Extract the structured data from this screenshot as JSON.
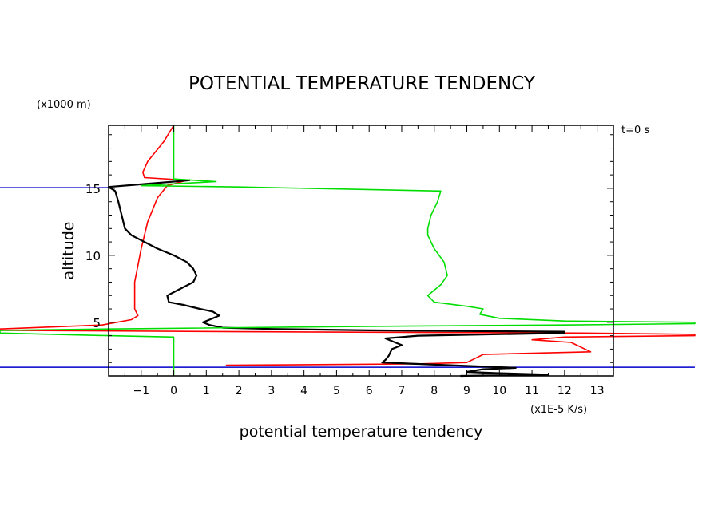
{
  "chart_data": {
    "type": "line",
    "title": "POTENTIAL TEMPERATURE TENDENCY",
    "xlabel": "potential temperature tendency",
    "ylabel": "altitude",
    "x_unit": "(x1E-5 K/s)",
    "y_unit": "(x1000 m)",
    "annotation": "t=0 s",
    "xlim": [
      -2,
      13.5
    ],
    "ylim": [
      1,
      19.7
    ],
    "x_ticks": [
      -1,
      0,
      1,
      2,
      3,
      4,
      5,
      6,
      7,
      8,
      9,
      10,
      11,
      12,
      13
    ],
    "y_ticks": [
      5,
      10,
      15
    ],
    "grid": false,
    "legend": "none",
    "series": [
      {
        "color": "#ff0000",
        "points": [
          [
            0,
            19.7
          ],
          [
            -0.3,
            18.5
          ],
          [
            -0.8,
            17
          ],
          [
            -0.95,
            16.2
          ],
          [
            -0.9,
            15.8
          ],
          [
            0.4,
            15.6
          ],
          [
            -0.2,
            15.2
          ],
          [
            -0.5,
            14.3
          ],
          [
            -0.8,
            12.5
          ],
          [
            -1.0,
            10.5
          ],
          [
            -1.2,
            8
          ],
          [
            -1.2,
            6
          ],
          [
            -1.1,
            5.5
          ],
          [
            -1.3,
            5.2
          ],
          [
            -2.2,
            4.8
          ],
          [
            -6,
            4.5
          ],
          [
            -6,
            4.4
          ],
          [
            2,
            4.3
          ],
          [
            12.5,
            4.2
          ],
          [
            16,
            4.1
          ],
          [
            16,
            4.0
          ],
          [
            12,
            3.9
          ],
          [
            11,
            3.7
          ],
          [
            12.2,
            3.5
          ],
          [
            12.8,
            2.8
          ],
          [
            9.5,
            2.6
          ],
          [
            9,
            2.0
          ],
          [
            7.5,
            1.9
          ],
          [
            1.6,
            1.8
          ]
        ]
      },
      {
        "color": "#000000",
        "points": [
          [
            0.5,
            15.6
          ],
          [
            -1,
            15.3
          ],
          [
            -2,
            15.1
          ],
          [
            -1.8,
            14.8
          ],
          [
            -1.7,
            14
          ],
          [
            -1.6,
            13
          ],
          [
            -1.5,
            12
          ],
          [
            -1.3,
            11.5
          ],
          [
            -0.9,
            11
          ],
          [
            -0.5,
            10.5
          ],
          [
            0,
            10
          ],
          [
            0.4,
            9.5
          ],
          [
            0.6,
            9
          ],
          [
            0.7,
            8.5
          ],
          [
            0.6,
            8
          ],
          [
            0.2,
            7.5
          ],
          [
            -0.2,
            7
          ],
          [
            -0.15,
            6.5
          ],
          [
            0.3,
            6.3
          ],
          [
            0.8,
            6
          ],
          [
            1.2,
            5.8
          ],
          [
            1.4,
            5.5
          ],
          [
            1.1,
            5.2
          ],
          [
            0.9,
            5
          ],
          [
            1.1,
            4.8
          ],
          [
            1.5,
            4.6
          ],
          [
            3,
            4.5
          ],
          [
            6,
            4.4
          ],
          [
            12,
            4.3
          ],
          [
            12,
            4.2
          ],
          [
            7.5,
            4.0
          ],
          [
            6.5,
            3.8
          ],
          [
            6.8,
            3.5
          ],
          [
            7,
            3.3
          ],
          [
            6.7,
            3.0
          ],
          [
            6.6,
            2.5
          ],
          [
            6.5,
            2.2
          ],
          [
            6.4,
            2.0
          ],
          [
            8.5,
            1.8
          ],
          [
            10.5,
            1.6
          ],
          [
            9.5,
            1.5
          ],
          [
            9,
            1.3
          ],
          [
            10,
            1.2
          ],
          [
            11.5,
            1.1
          ],
          [
            8.8,
            1.0
          ]
        ]
      },
      {
        "color": "#00dd00",
        "points": [
          [
            0,
            19.7
          ],
          [
            0,
            17.5
          ],
          [
            0,
            16
          ],
          [
            0,
            15.7
          ],
          [
            1.3,
            15.5
          ],
          [
            -0.3,
            15.3
          ],
          [
            -1,
            15.2
          ],
          [
            2,
            15.1
          ],
          [
            8.2,
            14.8
          ],
          [
            8.1,
            14
          ],
          [
            7.9,
            13
          ],
          [
            7.8,
            12
          ],
          [
            7.8,
            11.5
          ],
          [
            8,
            10.5
          ],
          [
            8.3,
            9.5
          ],
          [
            8.4,
            8.5
          ],
          [
            8.2,
            7.8
          ],
          [
            7.8,
            7
          ],
          [
            8,
            6.5
          ],
          [
            9,
            6.2
          ],
          [
            9.5,
            6
          ],
          [
            9.4,
            5.6
          ],
          [
            10,
            5.3
          ],
          [
            12,
            5.1
          ],
          [
            16,
            5
          ],
          [
            16,
            4.9
          ],
          [
            12,
            4.8
          ],
          [
            6,
            4.7
          ],
          [
            -2,
            4.5
          ],
          [
            -6,
            4.4
          ],
          [
            -6,
            4.2
          ],
          [
            -2,
            4.0
          ],
          [
            0,
            3.9
          ],
          [
            0,
            3.5
          ],
          [
            0,
            1
          ]
        ]
      }
    ],
    "reference_lines": [
      {
        "color": "#0000cc",
        "y": 15.05,
        "x": [
          -6,
          -1.9
        ]
      },
      {
        "color": "#0000cc",
        "y": 1.65,
        "x": [
          -6,
          16
        ]
      }
    ]
  }
}
